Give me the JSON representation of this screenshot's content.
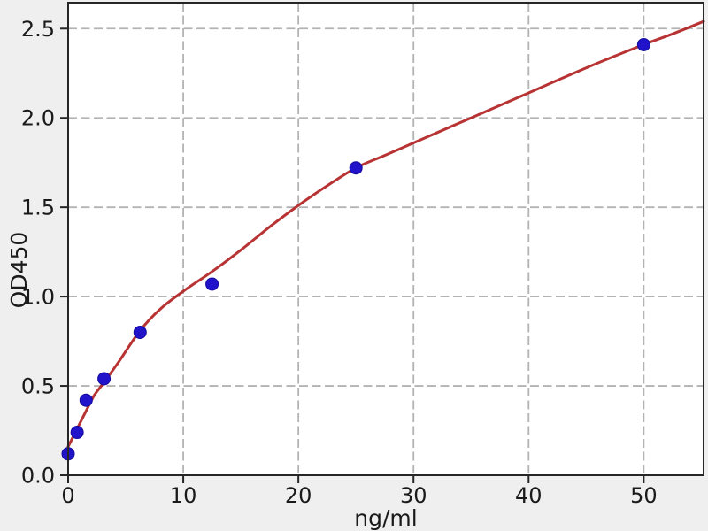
{
  "figure": {
    "background": "#efefef",
    "plot_background": "#ffffff",
    "spine_color": "#262626",
    "tick_color": "#262626",
    "text_color": "#1a1a1a"
  },
  "chart_data": {
    "type": "scatter",
    "title": "",
    "xlabel": "ng/ml",
    "ylabel": "OD450",
    "xlim": [
      0,
      55.2
    ],
    "ylim": [
      0,
      2.645
    ],
    "xticks": {
      "values": [
        0,
        10,
        20,
        30,
        40,
        50
      ],
      "labels": [
        "0",
        "10",
        "20",
        "30",
        "40",
        "50"
      ]
    },
    "yticks": {
      "values": [
        0,
        0.5,
        1.0,
        1.5,
        2.0,
        2.5
      ],
      "labels": [
        "0.0",
        "0.5",
        "1.0",
        "1.5",
        "2.0",
        "2.5"
      ]
    },
    "grid": {
      "on": true,
      "style": "dashed",
      "color": "#b3b3b3"
    },
    "legend": {
      "visible": false
    },
    "series": [
      {
        "name": "standard-points",
        "type": "scatter",
        "color": "#2013c9",
        "marker": "circle",
        "points": [
          [
            0,
            0.12
          ],
          [
            0.78,
            0.24
          ],
          [
            1.56,
            0.42
          ],
          [
            3.12,
            0.54
          ],
          [
            6.25,
            0.8
          ],
          [
            12.5,
            1.07
          ],
          [
            25,
            1.72
          ],
          [
            50,
            2.41
          ]
        ]
      },
      {
        "name": "fit-curve",
        "type": "line",
        "color": "#b22222",
        "points": [
          [
            0,
            0.16
          ],
          [
            0.78,
            0.26
          ],
          [
            1.56,
            0.36
          ],
          [
            2.3,
            0.45
          ],
          [
            3.12,
            0.52
          ],
          [
            4.45,
            0.64
          ],
          [
            6.25,
            0.81
          ],
          [
            8,
            0.93
          ],
          [
            10,
            1.03
          ],
          [
            12.5,
            1.14
          ],
          [
            15,
            1.26
          ],
          [
            17.5,
            1.39
          ],
          [
            20,
            1.51
          ],
          [
            22.5,
            1.62
          ],
          [
            25,
            1.72
          ],
          [
            27.5,
            1.79
          ],
          [
            30,
            1.86
          ],
          [
            35,
            2.0
          ],
          [
            40,
            2.14
          ],
          [
            45,
            2.28
          ],
          [
            50,
            2.41
          ],
          [
            52.5,
            2.47
          ],
          [
            55.2,
            2.54
          ]
        ]
      }
    ]
  }
}
